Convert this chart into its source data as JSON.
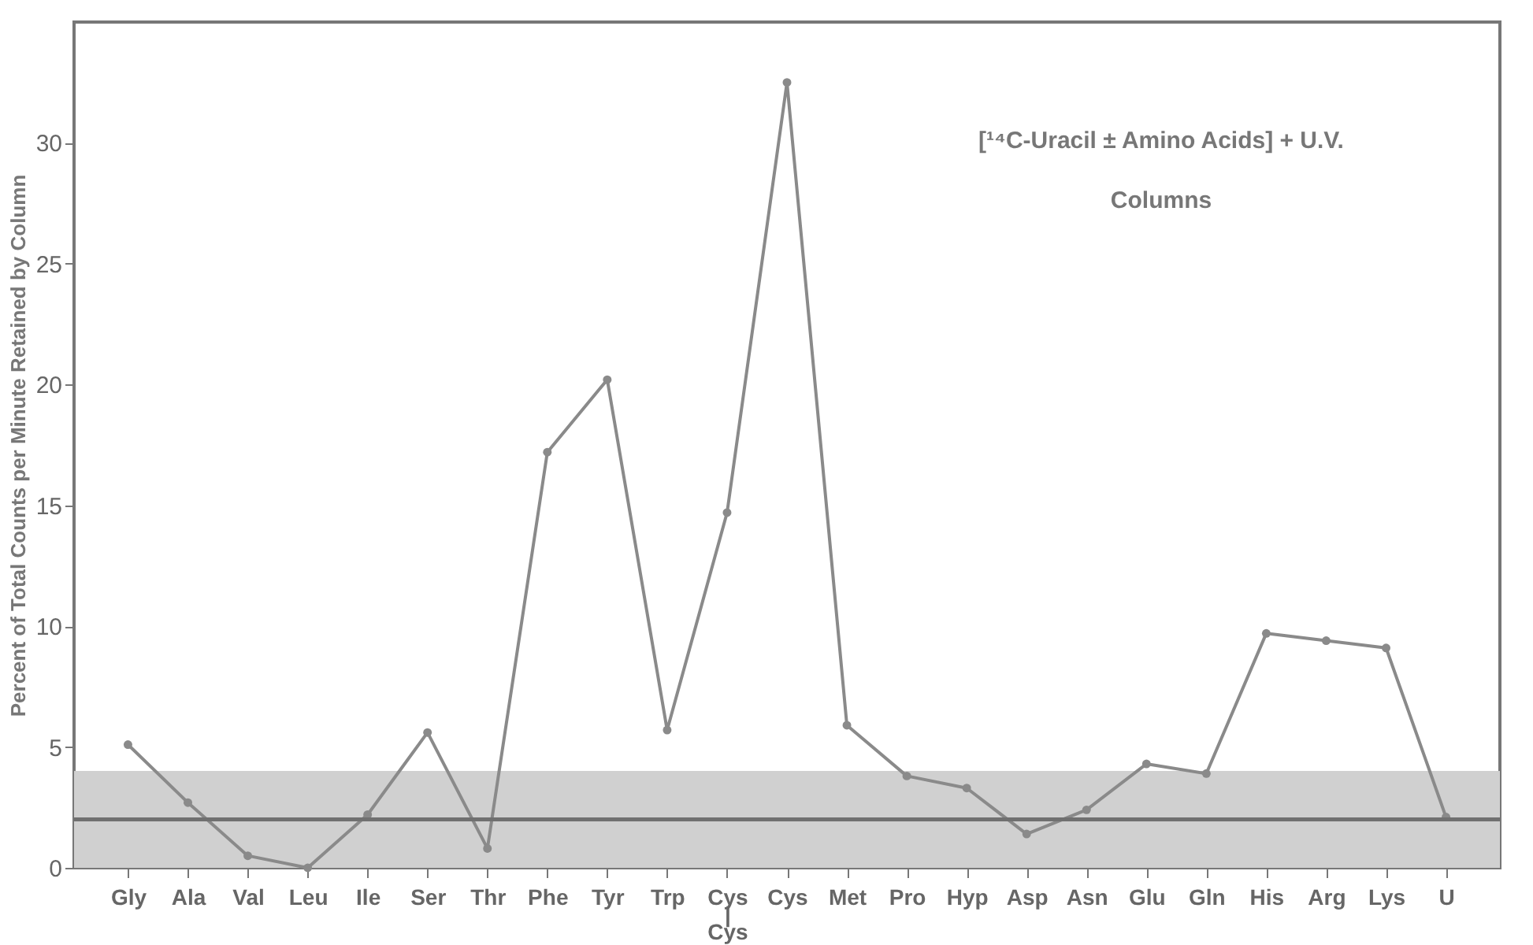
{
  "chart_data": {
    "type": "line",
    "ylabel": "Percent of Total Counts per Minute Retained by Column",
    "categories": [
      "Gly",
      "Ala",
      "Val",
      "Leu",
      "Ile",
      "Ser",
      "Thr",
      "Phe",
      "Tyr",
      "Trp",
      "Cys\n|\nCys",
      "Cys",
      "Met",
      "Pro",
      "Hyp",
      "Asp",
      "Asn",
      "Glu",
      "Gln",
      "His",
      "Arg",
      "Lys",
      "U"
    ],
    "series": [
      {
        "color": "#8a8a8a",
        "values": [
          5.1,
          2.7,
          0.5,
          0,
          2.2,
          5.6,
          0.8,
          17.2,
          20.2,
          5.7,
          14.7,
          32.5,
          5.9,
          3.8,
          3.3,
          1.4,
          2.4,
          4.3,
          3.9,
          9.7,
          9.4,
          9.1,
          2.1
        ]
      }
    ],
    "ylim": [
      0,
      35
    ],
    "yticks": [
      0,
      5,
      10,
      15,
      20,
      25,
      30
    ],
    "marker": "circle",
    "annotations": [
      "[¹⁴C-Uracil ± Amino Acids] + U.V.",
      "Columns"
    ],
    "ref_lines": [
      {
        "axis": "y",
        "value": 2,
        "color": "#707070"
      }
    ],
    "bands": [
      {
        "axis": "y",
        "from": 0,
        "to": 4,
        "color": "#d0d0d0"
      }
    ]
  }
}
